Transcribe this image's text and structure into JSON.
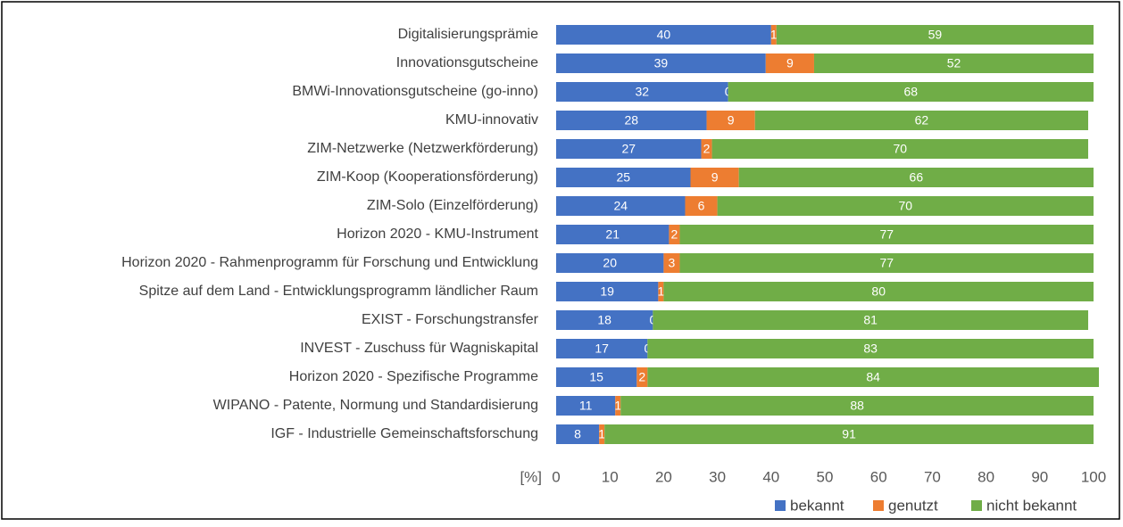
{
  "chart_data": {
    "type": "stacked-bar-horizontal",
    "categories": [
      "Digitalisierungsprämie",
      "Innovationsgutscheine",
      "BMWi-Innovationsgutscheine (go-inno)",
      "KMU-innovativ",
      "ZIM-Netzwerke (Netzwerkförderung)",
      "ZIM-Koop (Kooperationsförderung)",
      "ZIM-Solo (Einzelförderung)",
      "Horizon 2020 - KMU-Instrument",
      "Horizon 2020 - Rahmenprogramm für Forschung und Entwicklung",
      "Spitze auf dem Land - Entwicklungsprogramm ländlicher Raum",
      "EXIST - Forschungstransfer",
      "INVEST - Zuschuss für Wagniskapital",
      "Horizon 2020 - Spezifische Programme",
      "WIPANO - Patente, Normung und Standardisierung",
      "IGF - Industrielle Gemeinschaftsforschung"
    ],
    "series": [
      {
        "name": "bekannt",
        "color": "#4472c4",
        "values": [
          40,
          39,
          32,
          28,
          27,
          25,
          24,
          21,
          20,
          19,
          18,
          17,
          15,
          11,
          8
        ]
      },
      {
        "name": "genutzt",
        "color": "#ed7d31",
        "values": [
          1,
          9,
          0,
          9,
          2,
          9,
          6,
          2,
          3,
          1,
          0,
          0,
          2,
          1,
          1
        ]
      },
      {
        "name": "nicht bekannt",
        "color": "#70ad47",
        "values": [
          59,
          52,
          68,
          62,
          70,
          66,
          70,
          77,
          77,
          80,
          81,
          83,
          84,
          88,
          91
        ]
      }
    ],
    "xlabel": "[%]",
    "xlim": [
      0,
      100
    ],
    "xticks": [
      0,
      10,
      20,
      30,
      40,
      50,
      60,
      70,
      80,
      90,
      100
    ],
    "legend": "bottom-right"
  }
}
